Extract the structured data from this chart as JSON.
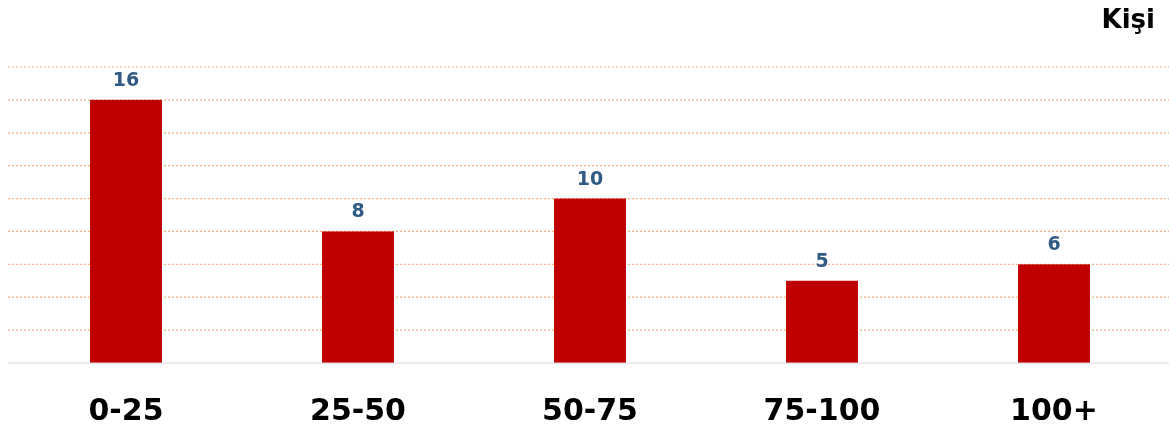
{
  "chart_data": {
    "type": "bar",
    "ylabel": "Kişi",
    "categories": [
      "0-25",
      "25-50",
      "50-75",
      "75-100",
      "100+"
    ],
    "values": [
      16,
      8,
      10,
      5,
      6
    ],
    "color": "#c00000",
    "data_labels": true,
    "ylim": [
      0,
      18
    ],
    "yticks": [
      {
        "value": 2,
        "label": null
      },
      {
        "value": 4,
        "label": null
      },
      {
        "value": 6,
        "label": null
      },
      {
        "value": 8,
        "label": null
      },
      {
        "value": 10,
        "label": null
      },
      {
        "value": 12,
        "label": null
      },
      {
        "value": 14,
        "label": null
      },
      {
        "value": 16,
        "label": null
      },
      {
        "value": 18,
        "label": null
      }
    ],
    "grid": "y",
    "tick_labels": "x"
  }
}
